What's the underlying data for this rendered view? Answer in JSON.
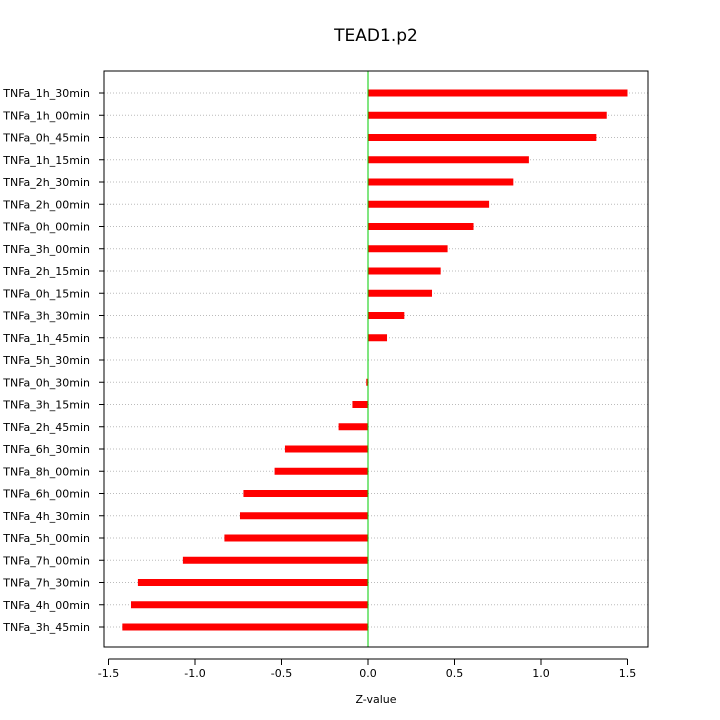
{
  "chart_data": {
    "type": "bar",
    "orientation": "horizontal",
    "title": "TEAD1.p2",
    "xlabel": "Z-value",
    "ylabel": "",
    "xlim": [
      -1.5,
      1.55
    ],
    "x_ticks": [
      -1.5,
      -1.0,
      -0.5,
      0.0,
      0.5,
      1.0,
      1.5
    ],
    "x_tick_labels": [
      "-1.5",
      "-1.0",
      "-0.5",
      "0.0",
      "0.5",
      "1.0",
      "1.5"
    ],
    "grid": "horizontal dotted",
    "categories": [
      "TNFa_1h_30min",
      "TNFa_1h_00min",
      "TNFa_0h_45min",
      "TNFa_1h_15min",
      "TNFa_2h_30min",
      "TNFa_2h_00min",
      "TNFa_0h_00min",
      "TNFa_3h_00min",
      "TNFa_2h_15min",
      "TNFa_0h_15min",
      "TNFa_3h_30min",
      "TNFa_1h_45min",
      "TNFa_5h_30min",
      "TNFa_0h_30min",
      "TNFa_3h_15min",
      "TNFa_2h_45min",
      "TNFa_6h_30min",
      "TNFa_8h_00min",
      "TNFa_6h_00min",
      "TNFa_4h_30min",
      "TNFa_5h_00min",
      "TNFa_7h_00min",
      "TNFa_7h_30min",
      "TNFa_4h_00min",
      "TNFa_3h_45min"
    ],
    "values": [
      1.5,
      1.38,
      1.32,
      0.93,
      0.84,
      0.7,
      0.61,
      0.46,
      0.42,
      0.37,
      0.21,
      0.11,
      0.0,
      -0.01,
      -0.09,
      -0.17,
      -0.48,
      -0.54,
      -0.72,
      -0.74,
      -0.83,
      -1.07,
      -1.33,
      -1.37,
      -1.42
    ],
    "bar_color": "#ff0000",
    "zero_line_color": "#00cc00",
    "grid_color": "#bbbbbb"
  }
}
